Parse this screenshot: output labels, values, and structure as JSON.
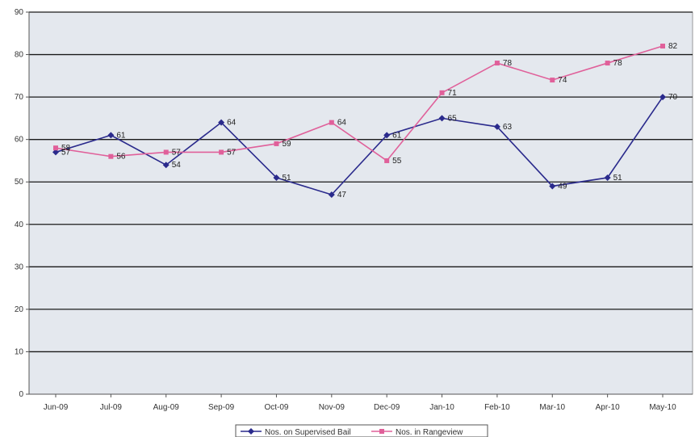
{
  "chart_data": {
    "type": "line",
    "categories": [
      "Jun-09",
      "Jul-09",
      "Aug-09",
      "Sep-09",
      "Oct-09",
      "Nov-09",
      "Dec-09",
      "Jan-10",
      "Feb-10",
      "Mar-10",
      "Apr-10",
      "May-10"
    ],
    "series": [
      {
        "name": "Nos. on Supervised Bail",
        "values": [
          57,
          61,
          54,
          64,
          51,
          47,
          61,
          65,
          63,
          49,
          51,
          70
        ],
        "color": "#2a2a8c",
        "marker": "diamond"
      },
      {
        "name": "Nos. in Rangeview",
        "values": [
          58,
          56,
          57,
          57,
          59,
          64,
          55,
          71,
          78,
          74,
          78,
          82
        ],
        "color": "#e0609a",
        "marker": "square"
      }
    ],
    "ylim": [
      0,
      90
    ],
    "yticks": [
      0,
      10,
      20,
      30,
      40,
      50,
      60,
      70,
      80,
      90
    ],
    "grid": true,
    "legend": "bottom",
    "plot_background": "#e4e8ee",
    "gridline_color": "#1a1a1a"
  }
}
